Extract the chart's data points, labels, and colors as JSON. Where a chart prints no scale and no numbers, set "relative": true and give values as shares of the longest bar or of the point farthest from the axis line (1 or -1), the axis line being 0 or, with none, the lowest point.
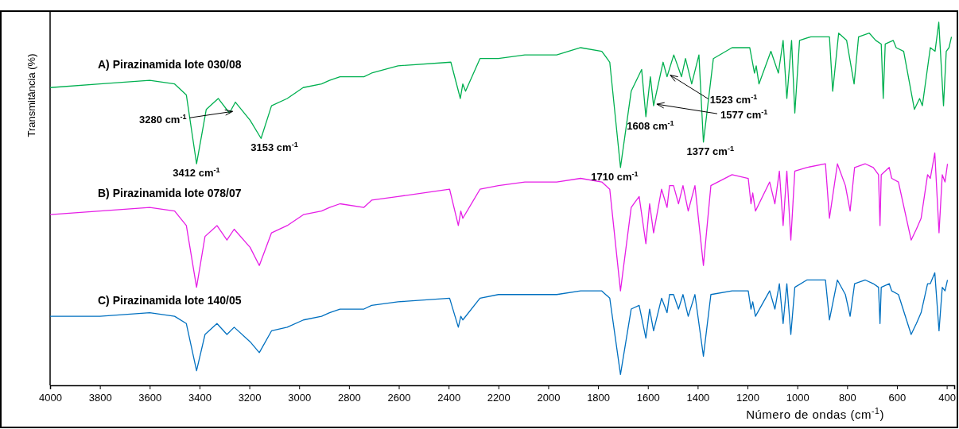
{
  "chart_data": {
    "type": "line",
    "relative": true,
    "ylabel": "Transmitância (%)",
    "xlabel": "Número de ondas (cm$^{-1}$)",
    "xlim": [
      4000,
      370
    ],
    "xticks": [
      4000,
      3800,
      3600,
      3400,
      3200,
      3000,
      2800,
      2600,
      2400,
      2200,
      2000,
      1800,
      1600,
      1400,
      1200,
      1000,
      800,
      600,
      400
    ],
    "tick_labels": "x",
    "legend": false,
    "series": [
      {
        "name": "A) Pirazinamida lote 030/08",
        "color": "#00b050",
        "x": [
          4000,
          3800,
          3600,
          3500,
          3453,
          3412,
          3373,
          3325,
          3280,
          3256,
          3197,
          3153,
          3111,
          3048,
          2984,
          2910,
          2878,
          2836,
          2740,
          2709,
          2603,
          2391,
          2353,
          2343,
          2332,
          2274,
          2200,
          2094,
          1966,
          1870,
          1785,
          1753,
          1710,
          1667,
          1625,
          1608,
          1590,
          1577,
          1539,
          1523,
          1496,
          1465,
          1449,
          1424,
          1395,
          1377,
          1337,
          1262,
          1191,
          1172,
          1165,
          1154,
          1106,
          1076,
          1057,
          1042,
          1023,
          1010,
          991,
          946,
          871,
          858,
          834,
          802,
          772,
          754,
          711,
          685,
          663,
          655,
          647,
          615,
          603,
          573,
          530,
          509,
          498,
          466,
          447,
          432,
          413,
          402,
          391,
          381
        ],
        "values": [
          0.82,
          0.83,
          0.84,
          0.83,
          0.8,
          0.61,
          0.76,
          0.79,
          0.75,
          0.78,
          0.73,
          0.68,
          0.77,
          0.79,
          0.82,
          0.83,
          0.84,
          0.85,
          0.85,
          0.86,
          0.88,
          0.89,
          0.79,
          0.83,
          0.81,
          0.9,
          0.9,
          0.91,
          0.91,
          0.93,
          0.92,
          0.89,
          0.6,
          0.81,
          0.87,
          0.74,
          0.85,
          0.77,
          0.89,
          0.85,
          0.91,
          0.85,
          0.9,
          0.83,
          0.91,
          0.67,
          0.9,
          0.93,
          0.93,
          0.86,
          0.88,
          0.83,
          0.92,
          0.86,
          0.95,
          0.79,
          0.95,
          0.75,
          0.95,
          0.96,
          0.96,
          0.81,
          0.97,
          0.95,
          0.83,
          0.96,
          0.97,
          0.95,
          0.94,
          0.79,
          0.94,
          0.95,
          0.93,
          0.92,
          0.76,
          0.79,
          0.77,
          0.93,
          0.92,
          1.0,
          0.77,
          0.92,
          0.93,
          0.96
        ]
      },
      {
        "name": "B) Pirazinamida lote 078/07",
        "color": "#e61ee6",
        "x": [
          4000,
          3800,
          3600,
          3500,
          3453,
          3412,
          3378,
          3330,
          3290,
          3261,
          3197,
          3160,
          3111,
          3048,
          2983,
          2910,
          2878,
          2836,
          2740,
          2709,
          2603,
          2396,
          2361,
          2351,
          2343,
          2274,
          2200,
          2094,
          1966,
          1870,
          1785,
          1753,
          1710,
          1667,
          1635,
          1608,
          1593,
          1577,
          1545,
          1523,
          1513,
          1497,
          1477,
          1459,
          1438,
          1411,
          1377,
          1347,
          1262,
          1197,
          1186,
          1179,
          1168,
          1111,
          1090,
          1072,
          1057,
          1042,
          1026,
          1010,
          962,
          887,
          871,
          839,
          807,
          788,
          770,
          727,
          695,
          674,
          668,
          663,
          631,
          621,
          594,
          543,
          522,
          503,
          477,
          466,
          448,
          431,
          418,
          407,
          397
        ],
        "values": [
          0.47,
          0.48,
          0.49,
          0.48,
          0.44,
          0.27,
          0.41,
          0.44,
          0.4,
          0.43,
          0.38,
          0.33,
          0.42,
          0.44,
          0.47,
          0.48,
          0.49,
          0.5,
          0.49,
          0.51,
          0.52,
          0.54,
          0.44,
          0.48,
          0.46,
          0.54,
          0.55,
          0.56,
          0.56,
          0.57,
          0.56,
          0.54,
          0.26,
          0.49,
          0.52,
          0.39,
          0.5,
          0.42,
          0.54,
          0.49,
          0.55,
          0.55,
          0.5,
          0.55,
          0.48,
          0.55,
          0.33,
          0.55,
          0.58,
          0.57,
          0.5,
          0.53,
          0.48,
          0.56,
          0.5,
          0.59,
          0.44,
          0.59,
          0.4,
          0.59,
          0.6,
          0.61,
          0.46,
          0.61,
          0.55,
          0.48,
          0.6,
          0.61,
          0.6,
          0.58,
          0.44,
          0.58,
          0.6,
          0.57,
          0.56,
          0.4,
          0.43,
          0.46,
          0.58,
          0.57,
          0.64,
          0.42,
          0.58,
          0.56,
          0.61
        ]
      },
      {
        "name": "C) Pirazinamida lote 140/05",
        "color": "#0070c0",
        "x": [
          4000,
          3800,
          3600,
          3500,
          3453,
          3412,
          3378,
          3330,
          3290,
          3261,
          3197,
          3160,
          3111,
          3048,
          2983,
          2910,
          2878,
          2836,
          2740,
          2709,
          2603,
          2396,
          2361,
          2351,
          2343,
          2274,
          2200,
          2094,
          1966,
          1870,
          1785,
          1753,
          1710,
          1667,
          1635,
          1608,
          1593,
          1577,
          1545,
          1523,
          1513,
          1497,
          1477,
          1459,
          1438,
          1411,
          1377,
          1347,
          1262,
          1197,
          1186,
          1179,
          1168,
          1111,
          1090,
          1072,
          1057,
          1042,
          1026,
          1010,
          962,
          887,
          871,
          839,
          807,
          788,
          770,
          727,
          695,
          674,
          668,
          663,
          631,
          621,
          594,
          543,
          522,
          503,
          477,
          466,
          448,
          431,
          418,
          407,
          397
        ],
        "values": [
          0.19,
          0.19,
          0.2,
          0.19,
          0.17,
          0.04,
          0.14,
          0.17,
          0.14,
          0.16,
          0.12,
          0.09,
          0.15,
          0.16,
          0.18,
          0.19,
          0.2,
          0.21,
          0.21,
          0.22,
          0.23,
          0.24,
          0.16,
          0.19,
          0.18,
          0.24,
          0.25,
          0.25,
          0.25,
          0.26,
          0.26,
          0.24,
          0.03,
          0.21,
          0.22,
          0.13,
          0.21,
          0.15,
          0.24,
          0.2,
          0.25,
          0.25,
          0.21,
          0.25,
          0.19,
          0.25,
          0.08,
          0.25,
          0.26,
          0.26,
          0.21,
          0.23,
          0.19,
          0.26,
          0.21,
          0.28,
          0.17,
          0.28,
          0.14,
          0.27,
          0.29,
          0.29,
          0.18,
          0.29,
          0.25,
          0.19,
          0.28,
          0.29,
          0.28,
          0.27,
          0.17,
          0.27,
          0.28,
          0.26,
          0.25,
          0.14,
          0.17,
          0.2,
          0.28,
          0.28,
          0.31,
          0.15,
          0.27,
          0.26,
          0.29
        ]
      }
    ],
    "annotations": [
      {
        "text": "3412 cm$^{-1}$",
        "x": 3412,
        "y": 0.61
      },
      {
        "text": "3280 cm$^{-1}$",
        "x": 3280,
        "y": 0.75
      },
      {
        "text": "3153 cm$^{-1}$",
        "x": 3153,
        "y": 0.68
      },
      {
        "text": "1710 cm$^{-1}$",
        "x": 1710,
        "y": 0.6
      },
      {
        "text": "1608 cm$^{-1}$",
        "x": 1608,
        "y": 0.74
      },
      {
        "text": "1577 cm$^{-1}$",
        "x": 1577,
        "y": 0.77
      },
      {
        "text": "1523 cm$^{-1}$",
        "x": 1523,
        "y": 0.85
      },
      {
        "text": "1377 cm$^{-1}$",
        "x": 1377,
        "y": 0.67
      }
    ]
  }
}
